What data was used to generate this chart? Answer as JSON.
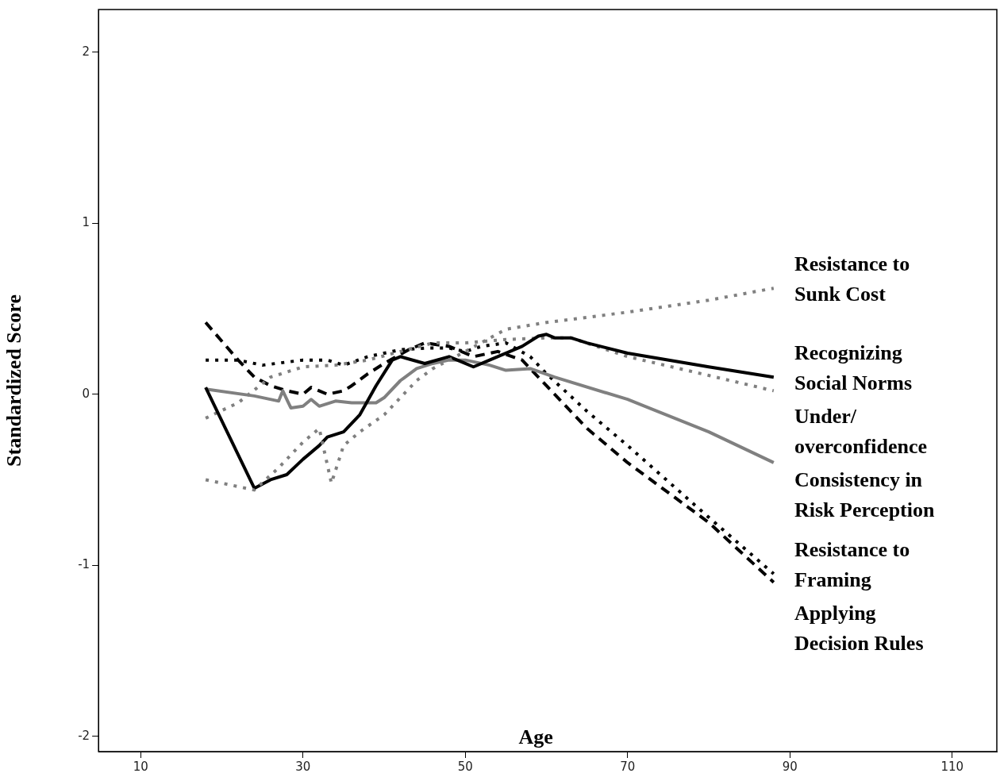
{
  "chart_data": {
    "type": "line",
    "xlabel": "Age",
    "ylabel": "Standardized Score",
    "xlim": [
      4.8,
      115.5
    ],
    "ylim": [
      -2.09,
      2.25
    ],
    "xticks": [
      10,
      30,
      50,
      70,
      90,
      110
    ],
    "yticks": [
      2,
      1,
      0,
      -1,
      -2
    ],
    "grid": false,
    "legend": false,
    "marker": "none",
    "series": [
      {
        "name": "Resistance to Sunk Cost",
        "color": "#808080",
        "line_style": "dotted",
        "x": [
          18,
          22,
          24,
          27,
          30,
          32,
          33.5,
          35,
          37,
          40,
          42,
          44,
          46,
          50,
          55,
          60,
          70,
          80,
          88
        ],
        "values": [
          -0.5,
          -0.54,
          -0.56,
          -0.43,
          -0.28,
          -0.2,
          -0.52,
          -0.3,
          -0.22,
          -0.12,
          -0.02,
          0.08,
          0.15,
          0.25,
          0.38,
          0.42,
          0.48,
          0.55,
          0.62
        ]
      },
      {
        "name": "Recognizing Social Norms",
        "color": "#000000",
        "line_style": "solid",
        "x": [
          18,
          24,
          26,
          28,
          30,
          32,
          33,
          35,
          37,
          39,
          41,
          42,
          45,
          48,
          50,
          51,
          53,
          57,
          59,
          60,
          61,
          63,
          65,
          70,
          80,
          88
        ],
        "values": [
          0.04,
          -0.55,
          -0.5,
          -0.47,
          -0.38,
          -0.3,
          -0.25,
          -0.22,
          -0.12,
          0.05,
          0.2,
          0.22,
          0.18,
          0.22,
          0.18,
          0.16,
          0.2,
          0.28,
          0.34,
          0.35,
          0.33,
          0.33,
          0.3,
          0.24,
          0.16,
          0.1
        ]
      },
      {
        "name": "Under/ overconfidence",
        "color": "#808080",
        "line_style": "dotted",
        "x": [
          18,
          22,
          26,
          30,
          34,
          38,
          42,
          46,
          50,
          55,
          60,
          63,
          70,
          80,
          88
        ],
        "values": [
          -0.14,
          -0.05,
          0.1,
          0.16,
          0.17,
          0.2,
          0.25,
          0.3,
          0.3,
          0.32,
          0.33,
          0.33,
          0.22,
          0.11,
          0.02
        ]
      },
      {
        "name": "Consistency in Risk Perception",
        "color": "#808080",
        "line_style": "solid",
        "x": [
          18,
          24,
          27,
          27.5,
          28.5,
          30,
          31,
          32,
          34,
          36,
          39,
          40,
          42,
          44,
          46,
          48,
          50,
          53,
          55,
          58,
          61,
          70,
          80,
          88
        ],
        "values": [
          0.03,
          -0.01,
          -0.04,
          0.02,
          -0.08,
          -0.07,
          -0.03,
          -0.07,
          -0.04,
          -0.05,
          -0.05,
          -0.02,
          0.08,
          0.15,
          0.18,
          0.2,
          0.2,
          0.17,
          0.14,
          0.15,
          0.1,
          -0.03,
          -0.22,
          -0.4
        ]
      },
      {
        "name": "Resistance to Framing",
        "color": "#000000",
        "line_style": "dotted",
        "x": [
          18,
          22,
          25,
          30,
          33,
          35,
          38,
          42,
          45,
          48,
          50,
          52,
          55,
          58,
          60,
          65,
          70,
          80,
          88
        ],
        "values": [
          0.2,
          0.2,
          0.17,
          0.2,
          0.2,
          0.17,
          0.22,
          0.26,
          0.27,
          0.27,
          0.25,
          0.28,
          0.3,
          0.22,
          0.12,
          -0.1,
          -0.3,
          -0.72,
          -1.05
        ]
      },
      {
        "name": "Applying Decision Rules",
        "color": "#000000",
        "line_style": "dashed",
        "x": [
          18,
          22,
          24,
          26,
          28,
          30,
          31,
          33,
          35,
          36,
          38,
          40,
          43,
          45,
          48,
          51,
          54,
          57,
          60,
          65,
          70,
          80,
          88
        ],
        "values": [
          0.42,
          0.2,
          0.1,
          0.05,
          0.02,
          0.0,
          0.04,
          0.0,
          0.02,
          0.05,
          0.12,
          0.18,
          0.26,
          0.3,
          0.28,
          0.22,
          0.25,
          0.2,
          0.05,
          -0.2,
          -0.4,
          -0.75,
          -1.1
        ]
      }
    ]
  }
}
